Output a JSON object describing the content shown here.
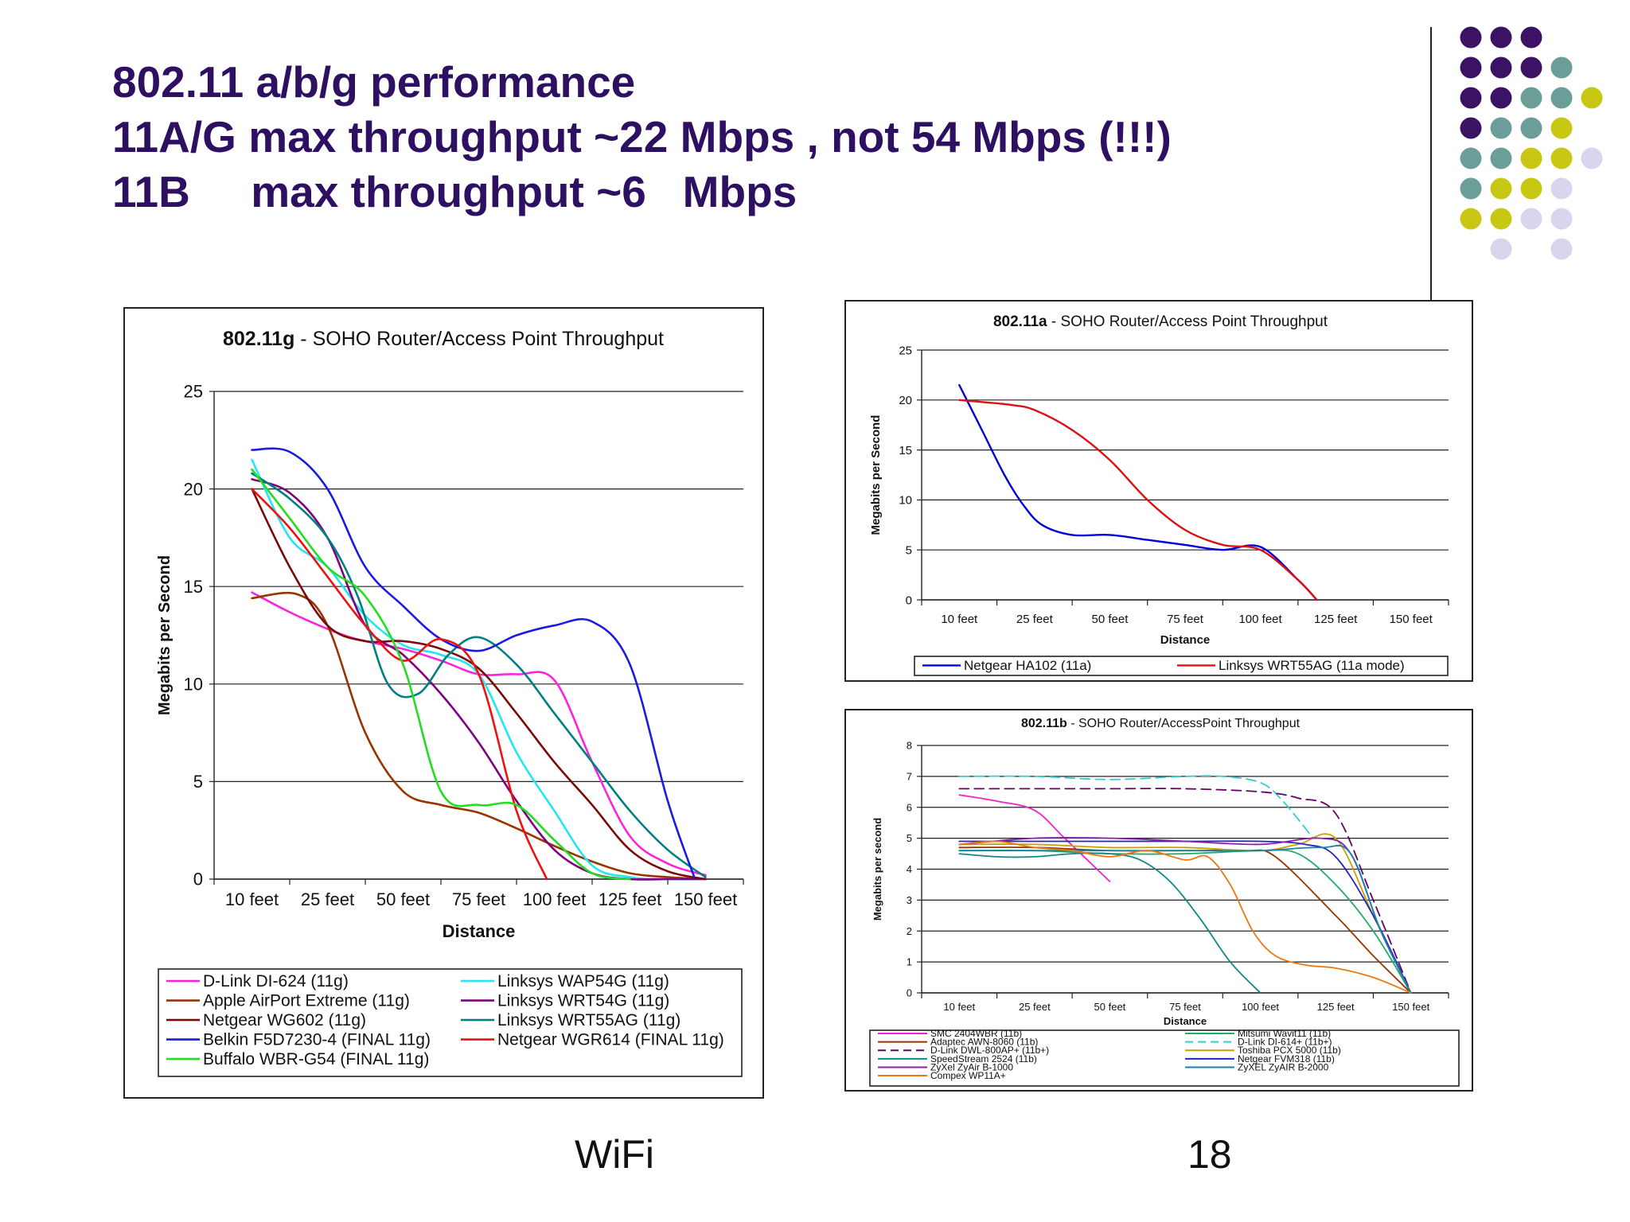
{
  "slide": {
    "title_line1": "802.11 a/b/g performance",
    "title_line2": "11A/G max throughput ~22 Mbps , not 54 Mbps (!!!)",
    "title_line3": "11B     max throughput ~6   Mbps",
    "footer_left": "WiFi",
    "footer_right": "18",
    "accent_colors": [
      "#3b1264",
      "#6b9e98",
      "#c8c814",
      "#d8d6ec"
    ]
  },
  "chart_data": [
    {
      "id": "g",
      "type": "line",
      "title_bold": "802.11g",
      "title_rest": " - SOHO Router/Access Point Throughput",
      "xlabel": "Distance",
      "ylabel": "Megabits per Second",
      "ylim": [
        0,
        25
      ],
      "yticks": [
        "0",
        "5",
        "10",
        "15",
        "20",
        "25"
      ],
      "categories": [
        "10 feet",
        "25 feet",
        "50 feet",
        "75 feet",
        "100 feet",
        "125 feet",
        "150 feet"
      ],
      "grid": true,
      "legend_placement": "bottom",
      "series": [
        {
          "name": "D-Link DI-624 (11g)",
          "color": "#ff22dd",
          "x": [
            0,
            0.6,
            1.3,
            2,
            2.5,
            3,
            3.5,
            4,
            4.5,
            5,
            5.5,
            6
          ],
          "y": [
            14.7,
            13.5,
            12.4,
            11.8,
            11.2,
            10.5,
            10.5,
            10.2,
            6.0,
            2.2,
            0.8,
            0.2
          ]
        },
        {
          "name": "Apple AirPort Extreme (11g)",
          "color": "#993300",
          "x": [
            0,
            0.6,
            1.0,
            1.5,
            2,
            2.5,
            3,
            3.5,
            4,
            4.5,
            5,
            5.5,
            6
          ],
          "y": [
            14.4,
            14.6,
            13.0,
            7.5,
            4.5,
            3.8,
            3.4,
            2.6,
            1.7,
            0.9,
            0.3,
            0.1,
            0.0
          ]
        },
        {
          "name": "Linksys WAP54G (11g)",
          "color": "#22e6f0",
          "x": [
            0,
            0.5,
            1,
            1.5,
            2,
            2.5,
            3,
            3.5,
            4,
            4.5,
            5,
            5.5,
            6
          ],
          "y": [
            21.5,
            17.5,
            16.0,
            13.5,
            12.0,
            11.5,
            10.5,
            6.5,
            3.5,
            0.7,
            0.1,
            0.0,
            0.0
          ]
        },
        {
          "name": "Linksys WRT54G (11g)",
          "color": "#800080",
          "x": [
            0,
            0.5,
            1,
            1.5,
            2,
            2.5,
            3,
            3.5,
            4,
            4.5,
            5,
            5.5,
            6
          ],
          "y": [
            20.5,
            19.8,
            17.5,
            13.0,
            11.5,
            9.5,
            7.0,
            4.0,
            1.5,
            0.3,
            0.0,
            0.0,
            0.0
          ]
        },
        {
          "name": "Netgear WG602 (11g)",
          "color": "#7a0a0a",
          "x": [
            0,
            0.5,
            1,
            1.5,
            2,
            2.5,
            3,
            3.5,
            4,
            4.5,
            5,
            5.5,
            6
          ],
          "y": [
            20.0,
            16.0,
            13.0,
            12.2,
            12.2,
            11.8,
            10.8,
            8.5,
            6.0,
            3.8,
            1.5,
            0.4,
            0.0
          ]
        },
        {
          "name": "Linksys WRT55AG (11g)",
          "color": "#008080",
          "x": [
            0,
            0.5,
            1,
            1.4,
            1.8,
            2.2,
            2.6,
            3,
            3.5,
            4,
            4.5,
            5,
            5.5,
            6
          ],
          "y": [
            20.8,
            19.5,
            17.5,
            14.5,
            10.0,
            9.5,
            11.5,
            12.4,
            11.0,
            8.5,
            6.0,
            3.5,
            1.5,
            0.1
          ]
        },
        {
          "name": "Belkin F5D7230-4 (FINAL 11g)",
          "color": "#1a1ae6",
          "x": [
            0,
            0.5,
            1,
            1.5,
            2,
            2.5,
            3,
            3.5,
            4,
            4.5,
            5,
            5.5,
            5.85
          ],
          "y": [
            22.0,
            21.9,
            20.0,
            16.0,
            14.0,
            12.3,
            11.7,
            12.5,
            13.0,
            13.2,
            11.0,
            4.0,
            0.1
          ]
        },
        {
          "name": "Netgear WGR614 (FINAL 11g)",
          "color": "#ee1111",
          "x": [
            0,
            0.5,
            1,
            1.5,
            2,
            2.5,
            3,
            3.5,
            3.9
          ],
          "y": [
            20.0,
            18.0,
            15.5,
            13.0,
            11.2,
            12.3,
            10.5,
            3.5,
            0.0
          ]
        },
        {
          "name": "Buffalo WBR-G54 (FINAL 11g)",
          "color": "#22dd22",
          "x": [
            0,
            0.5,
            1,
            1.5,
            2,
            2.5,
            3,
            3.5,
            4,
            4.5,
            5
          ],
          "y": [
            21.0,
            18.5,
            16.0,
            14.5,
            11.0,
            4.5,
            3.8,
            3.8,
            2.0,
            0.3,
            0.0
          ]
        }
      ]
    },
    {
      "id": "a",
      "type": "line",
      "title_bold": "802.11a",
      "title_rest": " - SOHO Router/Access Point Throughput",
      "xlabel": "Distance",
      "ylabel": "Megabits per Second",
      "ylim": [
        0,
        25
      ],
      "yticks": [
        "0",
        "5",
        "10",
        "15",
        "20",
        "25"
      ],
      "categories": [
        "10 feet",
        "25 feet",
        "50 feet",
        "75 feet",
        "100 feet",
        "125 feet",
        "150 feet"
      ],
      "grid": true,
      "legend_placement": "bottom",
      "series": [
        {
          "name": "Netgear HA102 (11a)",
          "color": "#0000dd",
          "x": [
            0,
            0.3,
            0.6,
            0.85,
            1.1,
            1.5,
            2,
            2.5,
            3,
            3.5,
            4,
            4.5,
            4.75
          ],
          "y": [
            21.5,
            17.0,
            12.5,
            9.5,
            7.5,
            6.5,
            6.5,
            6.0,
            5.5,
            5.0,
            5.3,
            2.0,
            0.0
          ]
        },
        {
          "name": "Linksys WRT55AG (11a mode)",
          "color": "#dd1111",
          "x": [
            0,
            0.3,
            0.7,
            1,
            1.5,
            2,
            2.5,
            3,
            3.5,
            4,
            4.5,
            4.75
          ],
          "y": [
            20.0,
            19.8,
            19.5,
            19.0,
            17.0,
            14.0,
            10.0,
            7.0,
            5.5,
            5.0,
            2.0,
            0.0
          ]
        }
      ]
    },
    {
      "id": "b",
      "type": "line",
      "title_bold": "802.11b",
      "title_rest": " - SOHO Router/AccessPoint Throughput",
      "xlabel": "Distance",
      "ylabel": "Megabits per second",
      "ylim": [
        0,
        8
      ],
      "yticks": [
        "0",
        "1",
        "2",
        "3",
        "4",
        "5",
        "6",
        "7",
        "8"
      ],
      "categories": [
        "10 feet",
        "25 feet",
        "50 feet",
        "75 feet",
        "100 feet",
        "125 feet",
        "150 feet"
      ],
      "grid": true,
      "legend_placement": "bottom",
      "series": [
        {
          "name": "SMC 2404WBR (11b)",
          "color": "#ee22cc",
          "dash": false,
          "x": [
            0,
            0.5,
            1,
            1.4,
            2
          ],
          "y": [
            6.4,
            6.2,
            5.9,
            5.0,
            3.6
          ]
        },
        {
          "name": "Mitsumi Wavit11 (11b)",
          "color": "#22aa66",
          "dash": false,
          "x": [
            0,
            1,
            2,
            3,
            4,
            4.5,
            5,
            5.5,
            6
          ],
          "y": [
            4.6,
            4.6,
            4.5,
            4.5,
            4.6,
            4.5,
            3.5,
            2.0,
            0.0
          ]
        },
        {
          "name": "Adaptec AWN-8060 (11b)",
          "color": "#993300",
          "dash": false,
          "x": [
            0,
            1,
            2,
            3,
            3.8,
            4.2,
            5,
            5.5,
            6
          ],
          "y": [
            4.7,
            4.7,
            4.6,
            4.6,
            4.6,
            4.4,
            2.5,
            1.2,
            0.0
          ]
        },
        {
          "name": "D-Link DI-614+ (11b+)",
          "color": "#33cccc",
          "dash": true,
          "x": [
            0,
            1,
            2,
            3,
            3.5,
            4,
            4.3,
            4.7
          ],
          "y": [
            7.0,
            7.0,
            6.9,
            7.0,
            7.0,
            6.8,
            6.2,
            5.0
          ]
        },
        {
          "name": "D-Link DWL-800AP+ (11b+)",
          "color": "#660066",
          "dash": true,
          "x": [
            0,
            1,
            2,
            3,
            4,
            4.5,
            5,
            5.5,
            6
          ],
          "y": [
            6.6,
            6.6,
            6.6,
            6.6,
            6.5,
            6.3,
            5.8,
            3.0,
            0.0
          ]
        },
        {
          "name": "Toshiba PCX 5000 (11b)",
          "color": "#c8a000",
          "dash": false,
          "x": [
            0,
            1,
            2,
            3,
            4,
            4.5,
            5,
            5.5,
            6
          ],
          "y": [
            4.8,
            4.8,
            4.7,
            4.7,
            4.6,
            4.8,
            5.0,
            2.5,
            0.0
          ]
        },
        {
          "name": "SpeedStream 2524 (11b)",
          "color": "#118888",
          "dash": false,
          "x": [
            0,
            0.5,
            1,
            1.5,
            2,
            2.4,
            2.8,
            3.2,
            3.6,
            4
          ],
          "y": [
            4.5,
            4.4,
            4.4,
            4.5,
            4.5,
            4.3,
            3.6,
            2.4,
            1.0,
            0.0
          ]
        },
        {
          "name": "Netgear FVM318 (11b)",
          "color": "#2222cc",
          "dash": false,
          "x": [
            0,
            1,
            2,
            3,
            4,
            4.6,
            5,
            5.5,
            6
          ],
          "y": [
            4.9,
            4.9,
            4.9,
            4.9,
            4.9,
            4.8,
            4.4,
            2.5,
            0.0
          ]
        },
        {
          "name": "ZyXel ZyAir B-1000",
          "color": "#8822aa",
          "dash": false,
          "x": [
            0,
            1,
            2,
            3,
            4,
            4.8,
            5.2,
            5.6,
            6
          ],
          "y": [
            4.8,
            5.0,
            5.0,
            4.9,
            4.8,
            5.0,
            4.5,
            2.0,
            0.0
          ]
        },
        {
          "name": "ZyXEL ZyAIR B-2000",
          "color": "#1188aa",
          "dash": false,
          "x": [
            0,
            1,
            2,
            3,
            4,
            4.8,
            5.2,
            5.6,
            6
          ],
          "y": [
            4.6,
            4.6,
            4.6,
            4.6,
            4.6,
            4.7,
            4.5,
            2.0,
            0.0
          ]
        },
        {
          "name": "Compex WP11A+",
          "color": "#ee7711",
          "dash": false,
          "x": [
            0,
            0.5,
            1,
            1.5,
            2,
            2.5,
            3,
            3.3,
            3.6,
            3.9,
            4.2,
            4.6,
            5,
            5.5,
            6
          ],
          "y": [
            4.8,
            4.9,
            4.7,
            4.6,
            4.4,
            4.6,
            4.3,
            4.4,
            3.5,
            2.0,
            1.2,
            0.9,
            0.8,
            0.5,
            0.0
          ]
        }
      ]
    }
  ]
}
